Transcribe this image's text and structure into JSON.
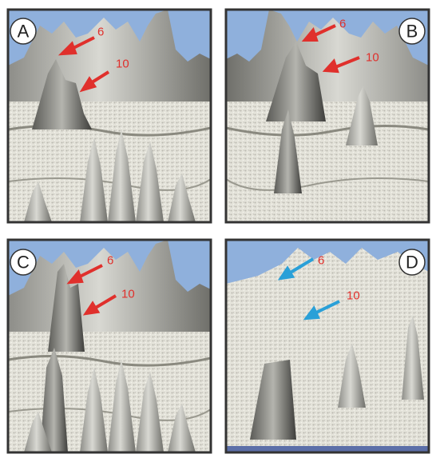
{
  "panels": [
    {
      "label": "A",
      "arrows": [
        "6",
        "10"
      ]
    },
    {
      "label": "B",
      "arrows": [
        "6",
        "10"
      ]
    },
    {
      "label": "C",
      "arrows": [
        "6",
        "10"
      ]
    },
    {
      "label": "D",
      "arrows": [
        "6",
        "10"
      ]
    }
  ]
}
